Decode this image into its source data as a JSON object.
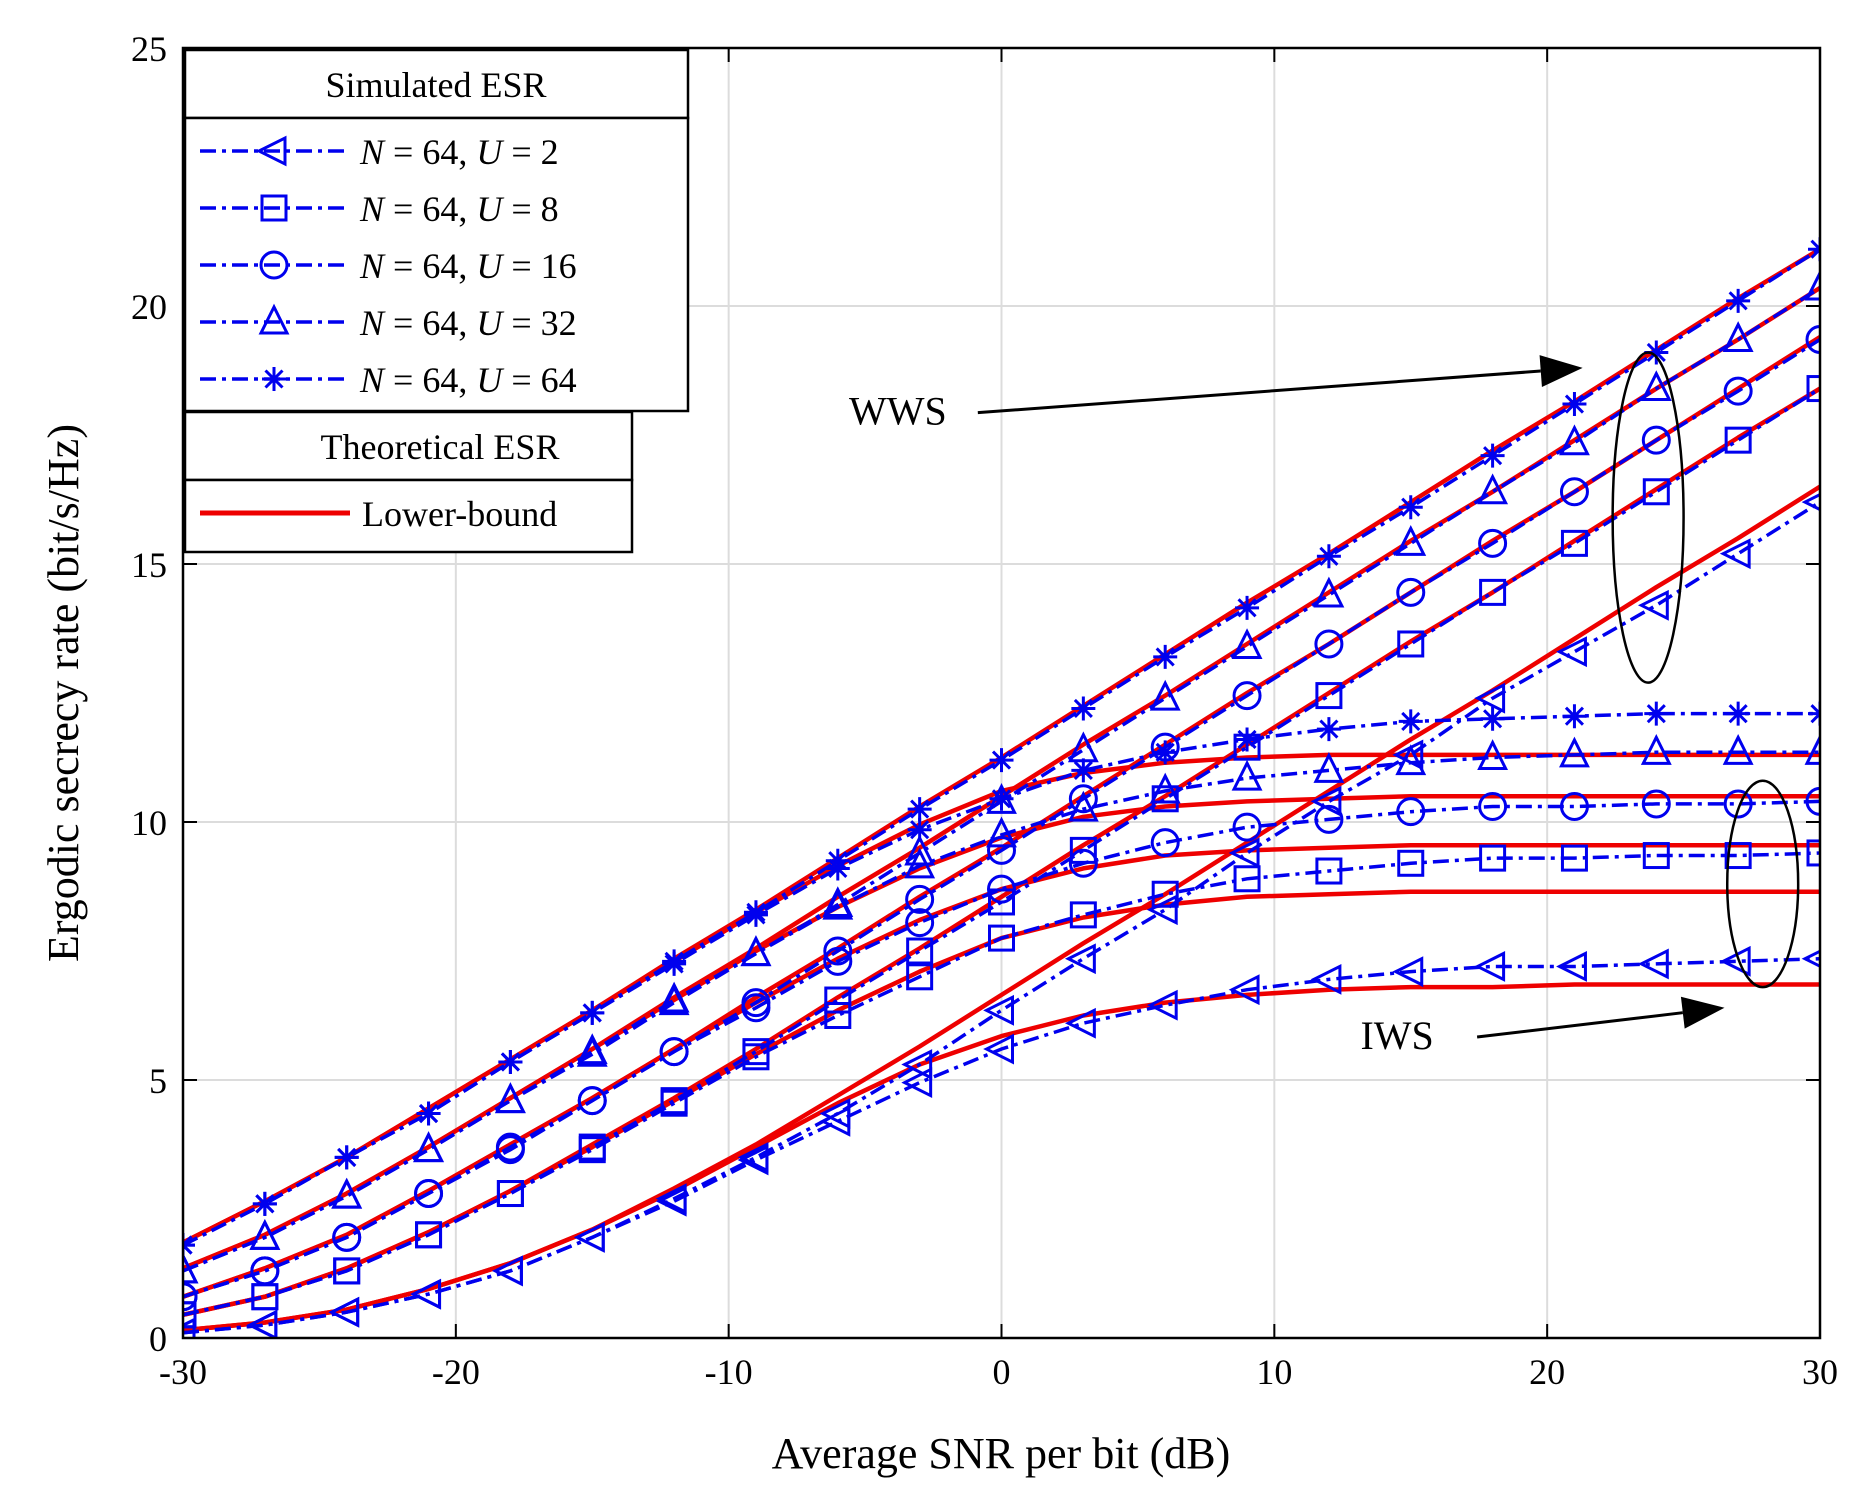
{
  "chart_data": {
    "type": "line",
    "title": "",
    "xlabel": "Average SNR per bit (dB)",
    "ylabel": "Ergodic secrecy rate (bit/s/Hz)",
    "xlim": [
      -30,
      30
    ],
    "ylim": [
      0,
      25
    ],
    "xticks": [
      -30,
      -20,
      -10,
      0,
      10,
      20,
      30
    ],
    "xtick_labels": [
      "-30",
      "-20",
      "-10",
      "0",
      "10",
      "20",
      "30"
    ],
    "yticks": [
      0,
      5,
      10,
      15,
      20,
      25
    ],
    "ytick_labels": [
      "0",
      "5",
      "10",
      "15",
      "20",
      "25"
    ],
    "grid": true,
    "colors": {
      "simulated": "#0000ee",
      "theoretical": "#ee0000"
    },
    "legend": {
      "placement": "top-left",
      "simulated_title": "Simulated ESR",
      "theoretical_title": "Theoretical ESR",
      "theoretical_label": "Lower-bound",
      "entries": [
        {
          "marker": "triangle-left",
          "N": "64",
          "U": "2"
        },
        {
          "marker": "square",
          "N": "64",
          "U": "8"
        },
        {
          "marker": "circle",
          "N": "64",
          "U": "16"
        },
        {
          "marker": "triangle-up",
          "N": "64",
          "U": "32"
        },
        {
          "marker": "asterisk",
          "N": "64",
          "U": "64"
        }
      ]
    },
    "annotations": [
      {
        "text": "WWS",
        "at": [
          -3.8,
          17.7
        ],
        "arrow_to": [
          21.3,
          18.8
        ]
      },
      {
        "text": "IWS",
        "at": [
          14.5,
          5.6
        ],
        "arrow_to": [
          26.5,
          6.4
        ]
      }
    ],
    "ellipses": [
      {
        "center": [
          23.7,
          15.9
        ],
        "rx": 1.3,
        "ry": 3.2
      },
      {
        "center": [
          27.9,
          8.8
        ],
        "rx": 1.3,
        "ry": 2.0
      }
    ],
    "x": [
      -30,
      -27,
      -24,
      -21,
      -18,
      -15,
      -12,
      -9,
      -6,
      -3,
      0,
      3,
      6,
      9,
      12,
      15,
      18,
      21,
      24,
      27,
      30
    ],
    "simulated_wws": [
      {
        "name": "N = 64, U = 2",
        "marker": "triangle-left",
        "values": [
          0.1,
          0.25,
          0.5,
          0.85,
          1.3,
          1.95,
          2.7,
          3.5,
          4.35,
          5.3,
          6.35,
          7.35,
          8.3,
          9.4,
          10.4,
          11.3,
          12.4,
          13.3,
          14.2,
          15.2,
          16.2
        ]
      },
      {
        "name": "N = 64, U = 8",
        "marker": "square",
        "values": [
          0.45,
          0.8,
          1.3,
          2.0,
          2.8,
          3.7,
          4.6,
          5.55,
          6.55,
          7.5,
          8.45,
          9.45,
          10.45,
          11.45,
          12.45,
          13.45,
          14.45,
          15.4,
          16.4,
          17.4,
          18.4
        ]
      },
      {
        "name": "N = 64, U = 16",
        "marker": "circle",
        "values": [
          0.8,
          1.3,
          1.95,
          2.8,
          3.7,
          4.6,
          5.55,
          6.5,
          7.5,
          8.5,
          9.45,
          10.45,
          11.45,
          12.45,
          13.45,
          14.45,
          15.4,
          16.4,
          17.4,
          18.35,
          19.35
        ]
      },
      {
        "name": "N = 64, U = 32",
        "marker": "triangle-up",
        "values": [
          1.3,
          1.95,
          2.75,
          3.65,
          4.6,
          5.55,
          6.55,
          7.45,
          8.4,
          9.4,
          10.4,
          11.4,
          12.4,
          13.4,
          14.4,
          15.4,
          16.4,
          17.35,
          18.4,
          19.35,
          20.35
        ]
      },
      {
        "name": "N = 64, U = 64",
        "marker": "asterisk",
        "values": [
          1.8,
          2.6,
          3.5,
          4.35,
          5.35,
          6.3,
          7.3,
          8.25,
          9.25,
          10.25,
          11.2,
          12.2,
          13.2,
          14.15,
          15.15,
          16.1,
          17.1,
          18.1,
          19.1,
          20.1,
          21.1
        ]
      }
    ],
    "simulated_iws": [
      {
        "name": "N = 64, U = 2",
        "marker": "triangle-left",
        "values": [
          0.1,
          0.25,
          0.5,
          0.85,
          1.3,
          1.95,
          2.65,
          3.45,
          4.2,
          4.95,
          5.6,
          6.1,
          6.45,
          6.75,
          6.95,
          7.1,
          7.2,
          7.2,
          7.25,
          7.3,
          7.35
        ]
      },
      {
        "name": "N = 64, U = 8",
        "marker": "square",
        "values": [
          0.45,
          0.8,
          1.3,
          2.0,
          2.8,
          3.65,
          4.55,
          5.45,
          6.25,
          7.0,
          7.75,
          8.2,
          8.6,
          8.9,
          9.05,
          9.2,
          9.3,
          9.3,
          9.35,
          9.35,
          9.4
        ]
      },
      {
        "name": "N = 64, U = 16",
        "marker": "circle",
        "values": [
          0.8,
          1.3,
          1.95,
          2.8,
          3.65,
          4.6,
          5.55,
          6.4,
          7.3,
          8.05,
          8.7,
          9.2,
          9.6,
          9.9,
          10.05,
          10.2,
          10.3,
          10.3,
          10.35,
          10.35,
          10.4
        ]
      },
      {
        "name": "N = 64, U = 32",
        "marker": "triangle-up",
        "values": [
          1.3,
          1.95,
          2.75,
          3.65,
          4.6,
          5.5,
          6.5,
          7.45,
          8.35,
          9.15,
          9.75,
          10.25,
          10.6,
          10.85,
          11.0,
          11.15,
          11.25,
          11.3,
          11.35,
          11.35,
          11.35
        ]
      },
      {
        "name": "N = 64, U = 64",
        "marker": "asterisk",
        "values": [
          1.8,
          2.6,
          3.5,
          4.35,
          5.35,
          6.3,
          7.25,
          8.2,
          9.1,
          9.85,
          10.45,
          11.0,
          11.35,
          11.6,
          11.8,
          11.95,
          12.0,
          12.05,
          12.1,
          12.1,
          12.1
        ]
      }
    ],
    "theory_wws": [
      {
        "name": "U = 2",
        "values": [
          0.15,
          0.3,
          0.55,
          0.95,
          1.45,
          2.1,
          2.9,
          3.75,
          4.7,
          5.65,
          6.65,
          7.65,
          8.6,
          9.6,
          10.6,
          11.6,
          12.55,
          13.55,
          14.55,
          15.5,
          16.5
        ]
      },
      {
        "name": "U = 8",
        "values": [
          0.45,
          0.8,
          1.35,
          2.05,
          2.85,
          3.75,
          4.65,
          5.6,
          6.6,
          7.55,
          8.55,
          9.55,
          10.5,
          11.5,
          12.5,
          13.5,
          14.45,
          15.45,
          16.45,
          17.45,
          18.4
        ]
      },
      {
        "name": "U = 16",
        "values": [
          0.8,
          1.35,
          2.0,
          2.85,
          3.75,
          4.65,
          5.6,
          6.6,
          7.55,
          8.55,
          9.5,
          10.5,
          11.5,
          12.5,
          13.45,
          14.45,
          15.45,
          16.4,
          17.4,
          18.4,
          19.4
        ]
      },
      {
        "name": "U = 32",
        "values": [
          1.35,
          2.0,
          2.8,
          3.7,
          4.65,
          5.6,
          6.6,
          7.55,
          8.55,
          9.5,
          10.5,
          11.5,
          12.45,
          13.45,
          14.45,
          15.45,
          16.4,
          17.4,
          18.4,
          19.35,
          20.35
        ]
      },
      {
        "name": "U = 64",
        "values": [
          1.85,
          2.65,
          3.5,
          4.45,
          5.4,
          6.35,
          7.35,
          8.3,
          9.3,
          10.3,
          11.25,
          12.25,
          13.25,
          14.25,
          15.2,
          16.2,
          17.2,
          18.15,
          19.15,
          20.15,
          21.1
        ]
      }
    ],
    "theory_iws": [
      {
        "name": "U = 2",
        "values": [
          0.15,
          0.3,
          0.55,
          0.95,
          1.45,
          2.1,
          2.85,
          3.7,
          4.55,
          5.3,
          5.85,
          6.25,
          6.5,
          6.65,
          6.75,
          6.8,
          6.8,
          6.85,
          6.85,
          6.85,
          6.85
        ]
      },
      {
        "name": "U = 8",
        "values": [
          0.45,
          0.8,
          1.35,
          2.05,
          2.85,
          3.7,
          4.6,
          5.5,
          6.35,
          7.1,
          7.75,
          8.15,
          8.4,
          8.55,
          8.6,
          8.65,
          8.65,
          8.65,
          8.65,
          8.65,
          8.65
        ]
      },
      {
        "name": "U = 16",
        "values": [
          0.8,
          1.35,
          2.0,
          2.85,
          3.75,
          4.65,
          5.6,
          6.5,
          7.35,
          8.1,
          8.7,
          9.1,
          9.35,
          9.45,
          9.5,
          9.55,
          9.55,
          9.55,
          9.55,
          9.55,
          9.55
        ]
      },
      {
        "name": "U = 32",
        "values": [
          1.35,
          2.0,
          2.8,
          3.7,
          4.65,
          5.6,
          6.55,
          7.5,
          8.35,
          9.1,
          9.7,
          10.1,
          10.3,
          10.4,
          10.45,
          10.5,
          10.5,
          10.5,
          10.5,
          10.5,
          10.5
        ]
      },
      {
        "name": "U = 64",
        "values": [
          1.85,
          2.65,
          3.5,
          4.45,
          5.4,
          6.35,
          7.3,
          8.25,
          9.15,
          9.95,
          10.6,
          10.95,
          11.15,
          11.25,
          11.3,
          11.3,
          11.3,
          11.3,
          11.3,
          11.3,
          11.3
        ]
      }
    ]
  }
}
